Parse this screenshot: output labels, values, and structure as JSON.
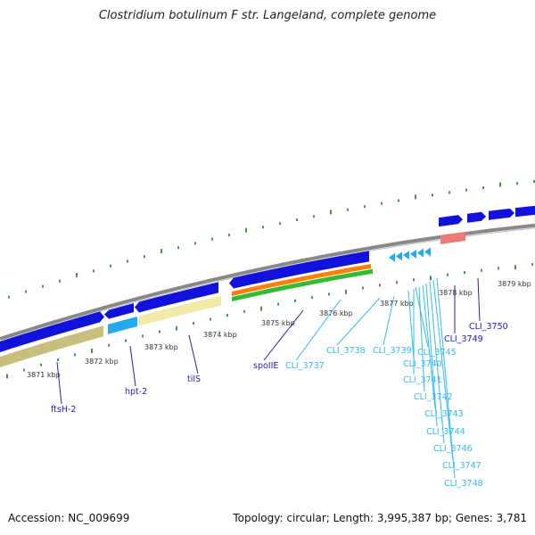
{
  "title": "Clostridium botulinum F str. Langeland, complete genome",
  "accession": "Accession: NC_009699",
  "summary": "Topology: circular; Length: 3,995,387 bp; Genes: 3,781",
  "colors": {
    "backbone": "#888888",
    "cds_forward": "#1111dd",
    "cds_reverse_light": "#22aaee",
    "gene_khaki": "#c8be7e",
    "gene_light_yellow": "#f2eba8",
    "orange": "#ff7f00",
    "green": "#33bb33",
    "pink": "#ee7777",
    "tick": "#227722",
    "label_dark": "#2222aa",
    "label_light": "#33bbee"
  },
  "ruler": [
    {
      "label": "3871 kbp"
    },
    {
      "label": "3872 kbp"
    },
    {
      "label": "3873 kbp"
    },
    {
      "label": "3874 kbp"
    },
    {
      "label": "3875 kbp"
    },
    {
      "label": "3876 kbp"
    },
    {
      "label": "3877 kbp"
    },
    {
      "label": "3878 kbp"
    },
    {
      "label": "3879 kbp"
    }
  ],
  "genes": [
    {
      "name": "ftsH-2",
      "style": "dark"
    },
    {
      "name": "hpt-2",
      "style": "dark"
    },
    {
      "name": "tilS",
      "style": "dark"
    },
    {
      "name": "spoIIE",
      "style": "dark"
    },
    {
      "name": "CLI_3737",
      "style": "light"
    },
    {
      "name": "CLI_3738",
      "style": "light"
    },
    {
      "name": "CLI_3739",
      "style": "light"
    },
    {
      "name": "CLI_3740",
      "style": "light"
    },
    {
      "name": "CLI_3741",
      "style": "light"
    },
    {
      "name": "CLI_3742",
      "style": "light"
    },
    {
      "name": "CLI_3743",
      "style": "light"
    },
    {
      "name": "CLI_3744",
      "style": "light"
    },
    {
      "name": "CLI_3745",
      "style": "light"
    },
    {
      "name": "CLI_3746",
      "style": "light"
    },
    {
      "name": "CLI_3747",
      "style": "light"
    },
    {
      "name": "CLI_3748",
      "style": "light"
    },
    {
      "name": "CLI_3749",
      "style": "dark"
    },
    {
      "name": "CLI_3750",
      "style": "dark"
    }
  ]
}
